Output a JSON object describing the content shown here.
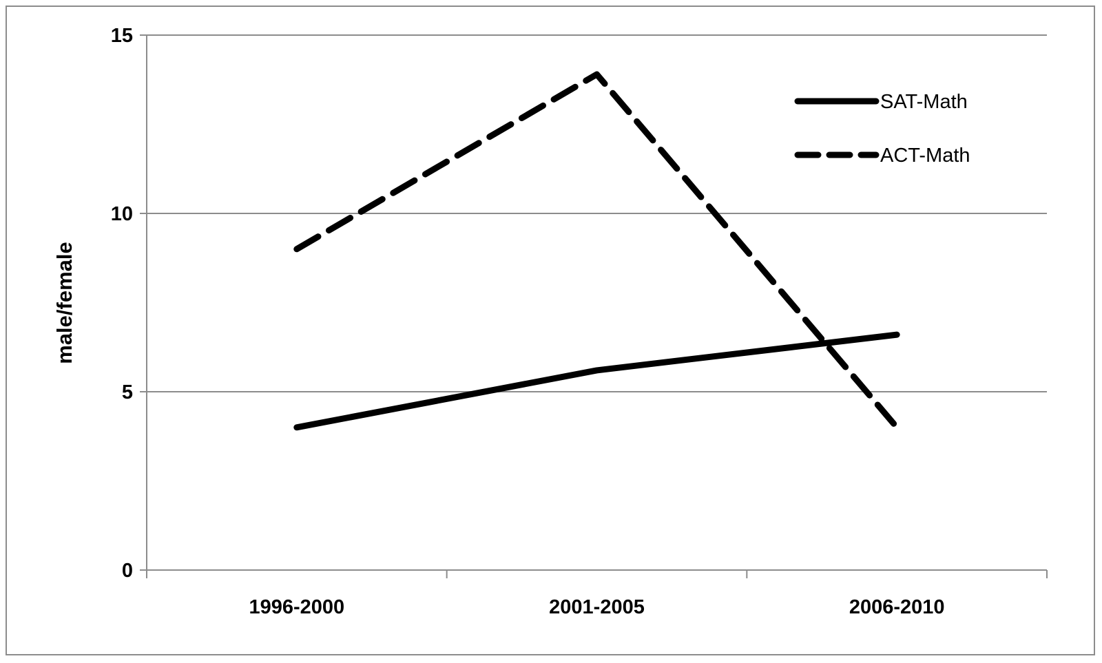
{
  "chart_data": {
    "type": "line",
    "title": "",
    "xlabel": "",
    "ylabel": "male/female",
    "categories": [
      "1996-2000",
      "2001-2005",
      "2006-2010"
    ],
    "yticks": [
      "0",
      "5",
      "10",
      "15"
    ],
    "ylim": [
      0,
      15
    ],
    "grid": "horizontal",
    "legend_position": "top-right",
    "series": [
      {
        "name": "SAT-Math",
        "style": "solid",
        "color": "#000000",
        "values": [
          4.0,
          5.6,
          6.6
        ]
      },
      {
        "name": "ACT-Math",
        "style": "dashed",
        "color": "#000000",
        "values": [
          9.0,
          13.9,
          4.0
        ]
      }
    ]
  }
}
